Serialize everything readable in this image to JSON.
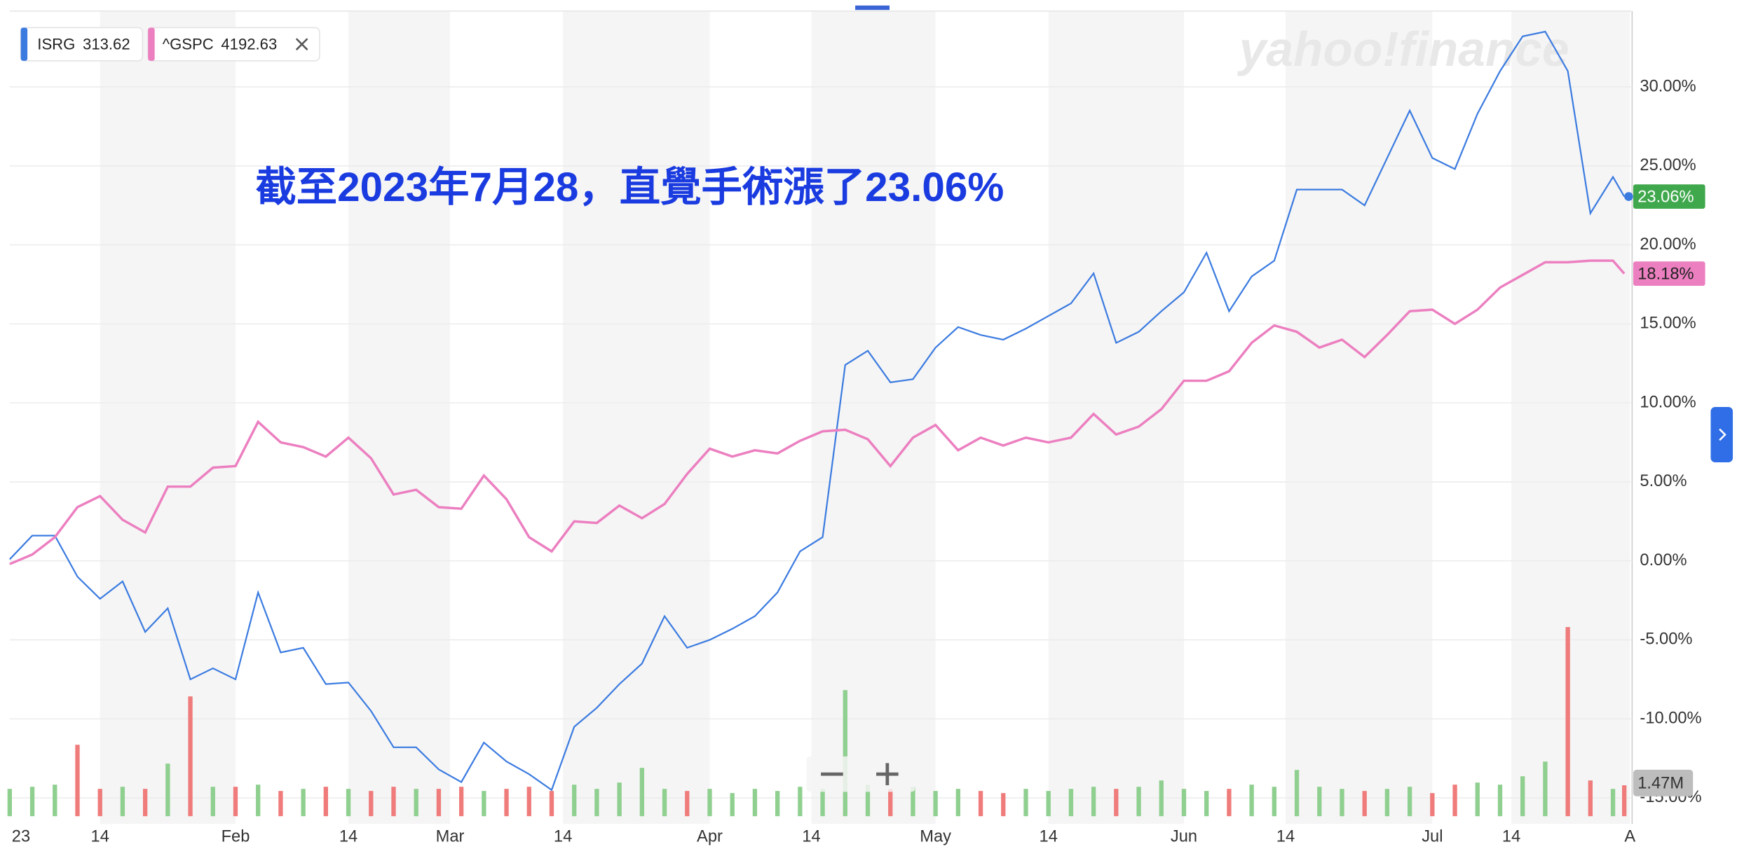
{
  "chart_data": {
    "type": "line",
    "annotation": "截至2023年7月28，直覺手術漲了23.06%",
    "watermark": "yahoo!finance",
    "x": [
      0,
      2,
      4,
      6,
      8,
      10,
      12,
      14,
      16,
      18,
      20,
      22,
      24,
      26,
      28,
      30,
      32,
      34,
      36,
      38,
      40,
      42,
      44,
      46,
      48,
      50,
      52,
      54,
      56,
      58,
      60,
      62,
      64,
      66,
      68,
      70,
      72,
      74,
      76,
      78,
      80,
      82,
      84,
      86,
      88,
      90,
      92,
      94,
      96,
      98,
      100,
      102,
      104,
      106,
      108,
      110,
      112,
      114,
      116,
      118,
      120,
      122,
      124,
      126,
      128,
      130,
      132,
      134,
      136,
      138,
      140,
      142,
      143
    ],
    "xlim": [
      0,
      143.5
    ],
    "xticks": [
      {
        "value": 1,
        "label": "23"
      },
      {
        "value": 8,
        "label": "14"
      },
      {
        "value": 20,
        "label": "Feb"
      },
      {
        "value": 30,
        "label": "14"
      },
      {
        "value": 39,
        "label": "Mar"
      },
      {
        "value": 49,
        "label": "14"
      },
      {
        "value": 62,
        "label": "Apr"
      },
      {
        "value": 71,
        "label": "14"
      },
      {
        "value": 82,
        "label": "May"
      },
      {
        "value": 92,
        "label": "14"
      },
      {
        "value": 104,
        "label": "Jun"
      },
      {
        "value": 113,
        "label": "14"
      },
      {
        "value": 126,
        "label": "Jul"
      },
      {
        "value": 133,
        "label": "14"
      },
      {
        "value": 143.5,
        "label": "A"
      }
    ],
    "ylim": [
      -16.3,
      34.8
    ],
    "yticks": [
      {
        "value": 30,
        "label": "30.00%"
      },
      {
        "value": 25,
        "label": "25.00%"
      },
      {
        "value": 20,
        "label": "20.00%"
      },
      {
        "value": 15,
        "label": "15.00%"
      },
      {
        "value": 10,
        "label": "10.00%"
      },
      {
        "value": 5,
        "label": "5.00%"
      },
      {
        "value": 0,
        "label": "0.00%"
      },
      {
        "value": -5,
        "label": "-5.00%"
      },
      {
        "value": -10,
        "label": "-10.00%"
      },
      {
        "value": -15,
        "label": "-15.00%"
      }
    ],
    "grid": true,
    "series": [
      {
        "name": "ISRG",
        "price": "313.62",
        "color": "#3b7be0",
        "end_label": "23.06%",
        "end_color": "#3fa84c",
        "values": [
          0.1,
          1.6,
          1.6,
          -1.0,
          -2.4,
          -1.3,
          -4.5,
          -3.0,
          -7.5,
          -6.8,
          -7.5,
          -2.0,
          -5.8,
          -5.5,
          -7.8,
          -7.7,
          -9.5,
          -11.8,
          -11.8,
          -13.2,
          -14.0,
          -11.5,
          -12.7,
          -13.5,
          -14.5,
          -10.5,
          -9.3,
          -7.8,
          -6.5,
          -3.5,
          -5.5,
          -5.0,
          -4.3,
          -3.5,
          -2.0,
          0.6,
          1.5,
          12.4,
          13.3,
          11.3,
          11.5,
          13.5,
          14.8,
          14.3,
          14.0,
          14.7,
          15.5,
          16.3,
          18.2,
          13.8,
          14.5,
          15.8,
          17.0,
          19.5,
          15.8,
          18.0,
          19.0,
          23.5,
          23.5,
          23.5,
          22.5,
          25.5,
          28.5,
          25.5,
          24.8,
          28.3,
          31.0,
          33.2,
          33.5,
          31.0,
          22.0,
          24.3,
          23.06
        ]
      },
      {
        "name": "^GSPC",
        "price": "4192.63",
        "color": "#ec7fc0",
        "end_label": "18.18%",
        "end_color": "#ec7fc0",
        "values": [
          -0.2,
          0.4,
          1.5,
          3.4,
          4.1,
          2.6,
          1.8,
          4.7,
          4.7,
          5.9,
          6.0,
          8.8,
          7.5,
          7.2,
          6.6,
          7.8,
          6.5,
          4.2,
          4.5,
          3.4,
          3.3,
          5.4,
          3.9,
          1.5,
          0.6,
          2.5,
          2.4,
          3.5,
          2.7,
          3.6,
          5.5,
          7.1,
          6.6,
          7.0,
          6.8,
          7.6,
          8.2,
          8.3,
          7.7,
          6.0,
          7.8,
          8.6,
          7.0,
          7.8,
          7.3,
          7.8,
          7.5,
          7.8,
          9.3,
          8.0,
          8.5,
          9.6,
          11.4,
          11.4,
          12.0,
          13.8,
          14.9,
          14.5,
          13.5,
          14.0,
          12.9,
          14.3,
          15.8,
          15.9,
          15.0,
          15.9,
          17.3,
          18.1,
          18.9,
          18.9,
          19.0,
          19.0,
          18.18
        ]
      }
    ],
    "volume": {
      "label": "1.47M",
      "up_color": "#8fcf8f",
      "down_color": "#ef7b7b",
      "values": [
        1.3,
        1.4,
        1.5,
        3.4,
        1.3,
        1.4,
        1.3,
        2.5,
        5.7,
        1.4,
        1.4,
        1.5,
        1.2,
        1.3,
        1.4,
        1.3,
        1.2,
        1.4,
        1.3,
        1.3,
        1.4,
        1.2,
        1.3,
        1.4,
        1.2,
        1.5,
        1.3,
        1.6,
        2.3,
        1.3,
        1.2,
        1.3,
        1.1,
        1.3,
        1.2,
        1.4,
        1.3,
        6.0,
        1.5,
        1.3,
        1.4,
        1.2,
        1.3,
        1.2,
        1.1,
        1.3,
        1.2,
        1.3,
        1.4,
        1.3,
        1.4,
        1.7,
        1.3,
        1.2,
        1.3,
        1.5,
        1.4,
        2.2,
        1.4,
        1.3,
        1.2,
        1.3,
        1.4,
        1.1,
        1.5,
        1.6,
        1.5,
        1.9,
        2.6,
        9.0,
        1.7,
        1.3,
        1.47
      ]
    }
  }
}
